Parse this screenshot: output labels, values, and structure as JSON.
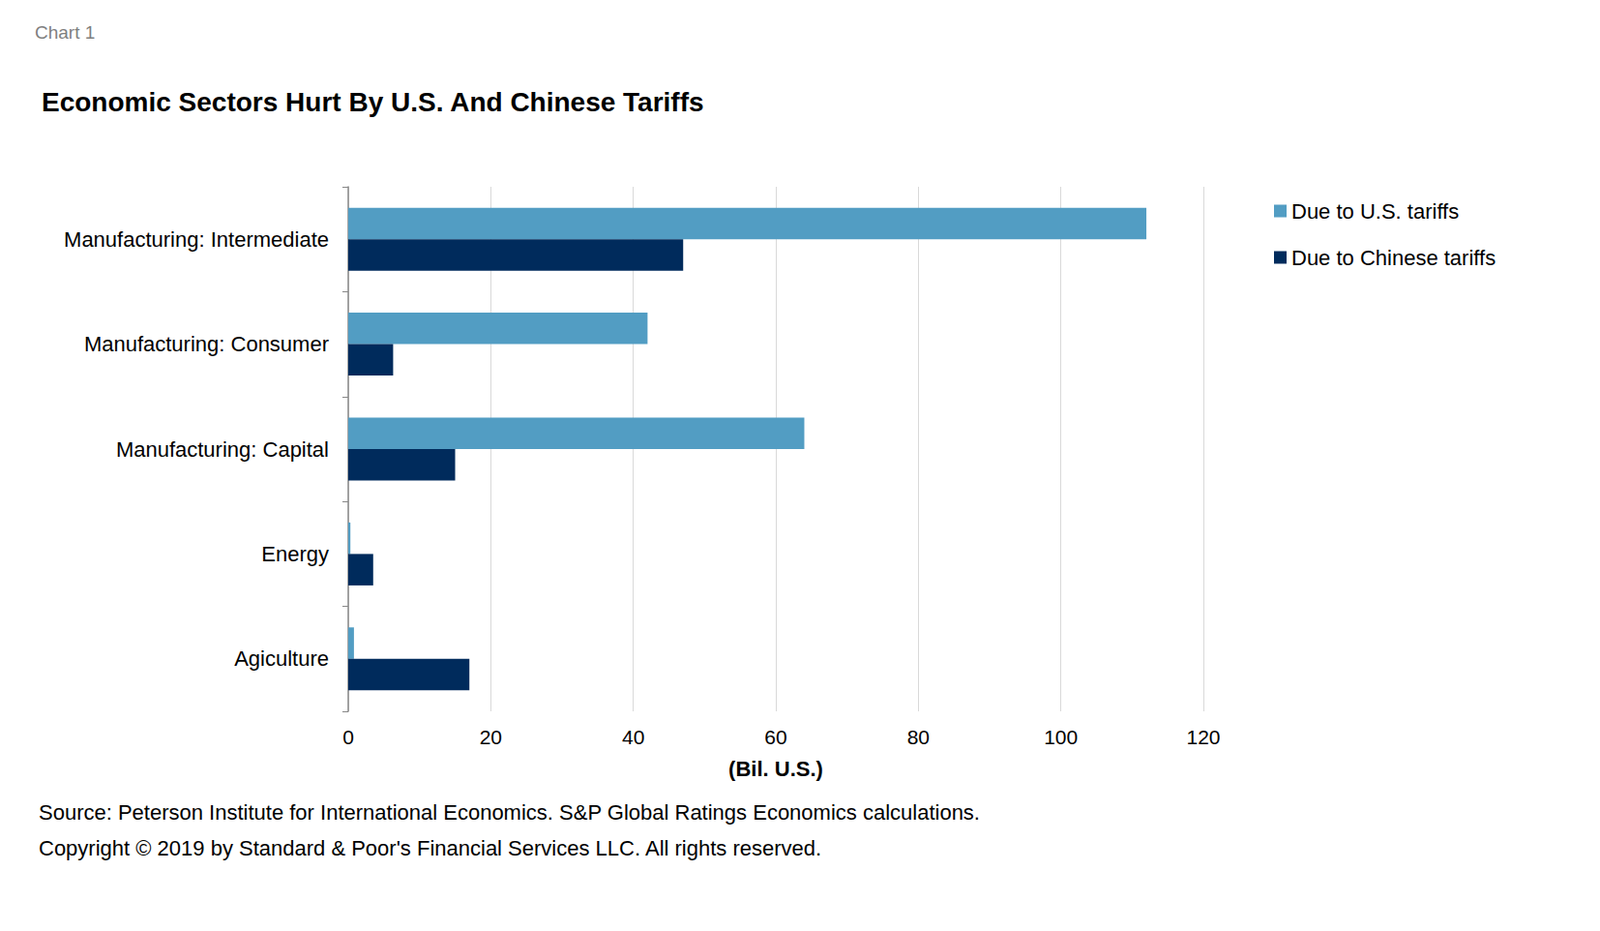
{
  "chart_data": {
    "type": "bar",
    "orientation": "horizontal",
    "title": "Economic Sectors Hurt By U.S. And Chinese Tariffs",
    "annotations": [
      "Chart 1",
      "Source: Peterson Institute for International Economics. S&P Global Ratings Economics calculations.",
      "Copyright © 2019 by Standard & Poor's Financial Services LLC. All rights reserved."
    ],
    "x_label": "(Bil. U.S.)",
    "categories": [
      "Manufacturing: Intermediate",
      "Manufacturing: Consumer",
      "Manufacturing: Capital",
      "Energy",
      "Agiculture"
    ],
    "series": [
      {
        "name": "Due to U.S. tariffs",
        "color": "#529dc3",
        "values": [
          112,
          42,
          64,
          0.3,
          0.8
        ]
      },
      {
        "name": "Due to Chinese tariffs",
        "color": "#002b5c",
        "values": [
          47,
          6.3,
          15,
          3.5,
          17
        ]
      }
    ],
    "xlim": [
      0,
      120
    ],
    "xticks": [
      0,
      20,
      40,
      60,
      80,
      100,
      120
    ],
    "grid": true,
    "legend": "right"
  }
}
